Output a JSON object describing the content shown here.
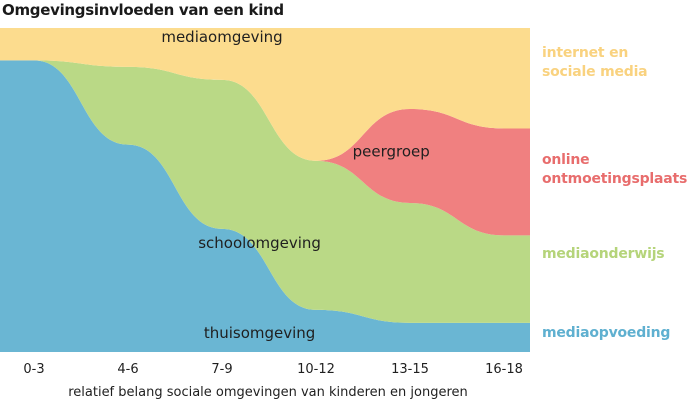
{
  "title": "Omgevingsinvloeden van een kind",
  "chart_data": {
    "type": "area",
    "stacked": true,
    "categories": [
      "0-3",
      "4-6",
      "7-9",
      "10-12",
      "13-15",
      "16-18"
    ],
    "xlabel": "relatief belang sociale omgevingen van kinderen en jongeren",
    "ylabel": "",
    "ylim": [
      0,
      100
    ],
    "grid": false,
    "legend": "right",
    "series": [
      {
        "name": "thuisomgeving",
        "color": "#6ab6d3",
        "x": [
          0,
          1,
          2,
          3,
          4,
          5
        ],
        "values": [
          90,
          64,
          38,
          13,
          9,
          9
        ]
      },
      {
        "name": "schoolomgeving",
        "color": "#bad986",
        "x": [
          0,
          1,
          2,
          3,
          4,
          5
        ],
        "values": [
          0,
          24,
          46,
          46,
          37,
          27
        ]
      },
      {
        "name": "peergroep",
        "color": "#f08080",
        "x": [
          0,
          1,
          2,
          3,
          4,
          5
        ],
        "values": [
          0,
          0,
          0,
          0,
          29,
          33
        ]
      },
      {
        "name": "mediaomgeving",
        "color": "#fcdc8e",
        "x": [
          0,
          1,
          2,
          3,
          4,
          5
        ],
        "values": [
          10,
          12,
          16,
          41,
          25,
          31
        ]
      }
    ],
    "side_labels": [
      {
        "lines": [
          "internet en",
          "sociale media"
        ],
        "color": "#f9d27f"
      },
      {
        "lines": [
          "online",
          "ontmoetingsplaats"
        ],
        "color": "#e86d6d"
      },
      {
        "lines": [
          "mediaonderwijs"
        ],
        "color": "#b5d47a"
      },
      {
        "lines": [
          "mediaopvoeding"
        ],
        "color": "#5fb0d0"
      }
    ]
  }
}
